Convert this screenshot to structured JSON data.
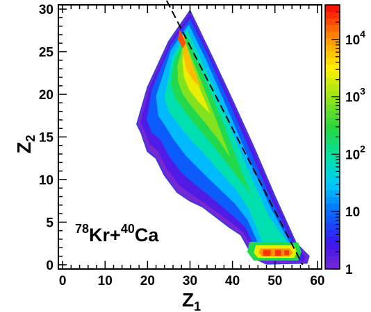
{
  "chart_data": {
    "type": "heatmap",
    "title": "",
    "xlabel": "Z",
    "xlabel_sub": "1",
    "ylabel": "Z",
    "ylabel_sub": "2",
    "xlim": [
      -1,
      61
    ],
    "ylim": [
      -0.5,
      30.5
    ],
    "xticks": [
      0,
      10,
      20,
      30,
      40,
      50,
      60
    ],
    "yticks": [
      0,
      5,
      10,
      15,
      20,
      25,
      30
    ],
    "colorbar": {
      "scale": "log",
      "range": [
        1,
        40000
      ],
      "ticks": [
        {
          "value": 1,
          "label": "1"
        },
        {
          "value": 10,
          "label": "10"
        },
        {
          "value": 100,
          "label": "10",
          "exp": "2"
        },
        {
          "value": 1000,
          "label": "10",
          "exp": "3"
        },
        {
          "value": 10000,
          "label": "10",
          "exp": "4"
        }
      ]
    },
    "annotation": {
      "mass1": "78",
      "el1": "Kr+",
      "mass2": "40",
      "el2": "Ca"
    },
    "reference_line": {
      "style": "dashed",
      "points": [
        [
          24.5,
          31
        ],
        [
          56.5,
          0
        ]
      ]
    },
    "contour_region": {
      "outline": [
        [
          30,
          29.8
        ],
        [
          35,
          24.6
        ],
        [
          40,
          19.3
        ],
        [
          45,
          13.8
        ],
        [
          50,
          8.0
        ],
        [
          55,
          2.5
        ],
        [
          58,
          1.0
        ],
        [
          57.5,
          0.2
        ],
        [
          48,
          0.1
        ],
        [
          45,
          0.8
        ],
        [
          42,
          3.5
        ],
        [
          39,
          4.5
        ],
        [
          33,
          6.8
        ],
        [
          30,
          7.5
        ],
        [
          27,
          8.5
        ],
        [
          24,
          10.5
        ],
        [
          22,
          12.5
        ],
        [
          20,
          13.3
        ],
        [
          18.5,
          15.5
        ],
        [
          17.5,
          16.5
        ],
        [
          20,
          20.8
        ],
        [
          25,
          26.2
        ]
      ],
      "levels": [
        {
          "value": 2,
          "outline": [
            [
              30,
              29.5
            ],
            [
              35,
              24.3
            ],
            [
              40,
              19.0
            ],
            [
              45,
              13.5
            ],
            [
              50,
              7.7
            ],
            [
              55,
              2.3
            ],
            [
              57.2,
              0.9
            ],
            [
              56.8,
              0.4
            ],
            [
              48.5,
              0.4
            ],
            [
              45.5,
              1.1
            ],
            [
              42.5,
              3.8
            ],
            [
              39.5,
              5.0
            ],
            [
              33.5,
              7.2
            ],
            [
              30.5,
              8.2
            ],
            [
              27.5,
              9.3
            ],
            [
              24.5,
              11.3
            ],
            [
              22.5,
              13.3
            ],
            [
              20.5,
              14.2
            ],
            [
              19,
              16
            ],
            [
              18.3,
              16.6
            ],
            [
              20.5,
              20.9
            ],
            [
              25.3,
              26.1
            ]
          ]
        },
        {
          "value": 8,
          "outline": [
            [
              30,
              28.9
            ],
            [
              34.5,
              24.3
            ],
            [
              39.5,
              18.7
            ],
            [
              44.5,
              13.0
            ],
            [
              49.5,
              7.3
            ],
            [
              54.5,
              2.2
            ],
            [
              56.2,
              1.0
            ],
            [
              55.8,
              0.6
            ],
            [
              49,
              0.7
            ],
            [
              46,
              1.4
            ],
            [
              43,
              4.4
            ],
            [
              40,
              5.8
            ],
            [
              34,
              8.3
            ],
            [
              31,
              9.5
            ],
            [
              28,
              10.8
            ],
            [
              25,
              12.8
            ],
            [
              23,
              14.7
            ],
            [
              21,
              15.5
            ],
            [
              19.8,
              17.0
            ],
            [
              21,
              20.6
            ],
            [
              25.5,
              25.8
            ]
          ]
        },
        {
          "value": 25,
          "outline": [
            [
              29.7,
              28.2
            ],
            [
              34,
              23.8
            ],
            [
              39,
              18.1
            ],
            [
              44,
              12.2
            ],
            [
              49,
              6.7
            ],
            [
              53.8,
              2.3
            ],
            [
              55,
              1.2
            ],
            [
              49.5,
              1.0
            ],
            [
              46.5,
              2.0
            ],
            [
              43.5,
              5.3
            ],
            [
              40.5,
              7.2
            ],
            [
              35,
              9.8
            ],
            [
              32,
              11.3
            ],
            [
              29,
              12.8
            ],
            [
              26,
              14.8
            ],
            [
              24,
              16.4
            ],
            [
              22.5,
              17.5
            ],
            [
              22,
              19.8
            ],
            [
              25.5,
              25.2
            ]
          ]
        },
        {
          "value": 80,
          "outline": [
            [
              29.3,
              27.6
            ],
            [
              33.5,
              23.1
            ],
            [
              38.5,
              17.3
            ],
            [
              43.5,
              11.3
            ],
            [
              48.5,
              5.8
            ],
            [
              53,
              2.5
            ],
            [
              54,
              1.4
            ],
            [
              50,
              1.2
            ],
            [
              47,
              2.7
            ],
            [
              44,
              6.4
            ],
            [
              41,
              8.7
            ],
            [
              36,
              11.5
            ],
            [
              33,
              13.2
            ],
            [
              30,
              14.8
            ],
            [
              27,
              16.6
            ],
            [
              25,
              18.0
            ],
            [
              24,
              19.6
            ],
            [
              25.8,
              24.3
            ]
          ]
        },
        {
          "value": 250,
          "outline": [
            [
              29,
              27.0
            ],
            [
              33,
              22.4
            ],
            [
              38,
              16.4
            ],
            [
              42.5,
              10.5
            ],
            [
              45,
              7.6
            ],
            [
              43.5,
              8.9
            ],
            [
              41,
              10.4
            ],
            [
              37,
              13.0
            ],
            [
              34,
              14.8
            ],
            [
              31,
              16.6
            ],
            [
              28.5,
              18.2
            ],
            [
              26.5,
              19.6
            ],
            [
              25.5,
              21.2
            ],
            [
              26.2,
              23.7
            ]
          ]
        },
        {
          "value": 800,
          "outline": [
            [
              28.7,
              26.4
            ],
            [
              32.5,
              21.7
            ],
            [
              37,
              15.9
            ],
            [
              39.5,
              12.6
            ],
            [
              36.5,
              14.8
            ],
            [
              33.5,
              16.7
            ],
            [
              30.5,
              18.5
            ],
            [
              28.3,
              20.0
            ],
            [
              27.2,
              21.5
            ],
            [
              27,
              23.3
            ]
          ]
        },
        {
          "value": 2500,
          "outline": [
            [
              28.5,
              25.8
            ],
            [
              31.8,
              21.3
            ],
            [
              34.8,
              17.7
            ],
            [
              32.2,
              19.0
            ],
            [
              29.8,
              20.5
            ],
            [
              28.6,
              22.0
            ],
            [
              28.2,
              23.8
            ]
          ]
        },
        {
          "value": 6000,
          "outline": [
            [
              28.3,
              27.3
            ],
            [
              30.2,
              24.0
            ],
            [
              32.5,
              20.8
            ],
            [
              30.8,
              21.6
            ],
            [
              29.2,
              22.8
            ],
            [
              28.4,
              24.8
            ]
          ]
        },
        {
          "value": 20000,
          "outline": [
            [
              27.6,
              27.6
            ],
            [
              29.0,
              26.0
            ],
            [
              28.3,
              25.4
            ],
            [
              27.1,
              26.5
            ]
          ]
        }
      ],
      "hotspot": {
        "levels": [
          {
            "value": 250,
            "outline": [
              [
                44,
                2.7
              ],
              [
                55.5,
                2.6
              ],
              [
                56.2,
                1.5
              ],
              [
                55.5,
                0.5
              ],
              [
                45,
                0.5
              ],
              [
                43.5,
                1.5
              ]
            ]
          },
          {
            "value": 2500,
            "outline": [
              [
                45.5,
                2.3
              ],
              [
                54.5,
                2.3
              ],
              [
                55.2,
                1.4
              ],
              [
                54.5,
                0.8
              ],
              [
                46,
                0.8
              ],
              [
                45,
                1.4
              ]
            ]
          },
          {
            "value": 10000,
            "outline": [
              [
                46.5,
                1.9
              ],
              [
                53.5,
                1.9
              ],
              [
                54.2,
                1.4
              ],
              [
                53.5,
                1.0
              ],
              [
                47,
                1.0
              ],
              [
                46.2,
                1.4
              ]
            ]
          },
          {
            "value": 25000,
            "outline": [
              [
                47.2,
                1.75
              ],
              [
                49,
                1.75
              ],
              [
                49,
                1.05
              ],
              [
                47.2,
                1.05
              ]
            ]
          },
          {
            "value": 25000,
            "outline": [
              [
                50,
                1.75
              ],
              [
                51.5,
                1.75
              ],
              [
                51.5,
                1.05
              ],
              [
                50,
                1.05
              ]
            ]
          },
          {
            "value": 25000,
            "outline": [
              [
                52.2,
                1.7
              ],
              [
                53.3,
                1.7
              ],
              [
                53.3,
                1.1
              ],
              [
                52.2,
                1.1
              ]
            ]
          }
        ]
      }
    }
  }
}
